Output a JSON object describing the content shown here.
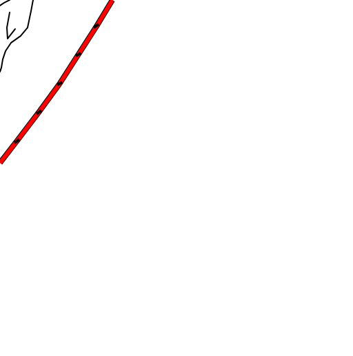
{
  "map": {
    "background_color": "#ffffff",
    "boundary_color": "#000000",
    "route": {
      "fill_color": "#ff0000",
      "casing_color": "#000000",
      "dash_color": "#000000"
    }
  }
}
